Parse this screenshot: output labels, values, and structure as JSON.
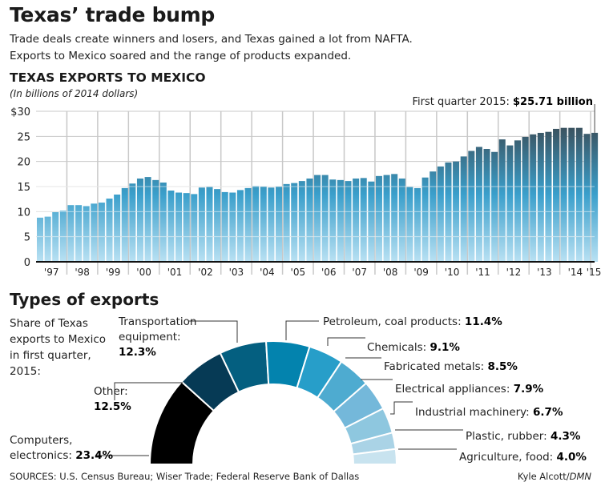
{
  "header": {
    "title": "Texas’ trade bump",
    "dek_line1": "Trade deals create winners and losers, and Texas gained a lot from NAFTA.",
    "dek_line2": "Exports to Mexico soared and the range of products expanded."
  },
  "bar_chart_header": {
    "title": "TEXAS EXPORTS TO MEXICO",
    "subtitle": "(In billions of 2014 dollars)",
    "callout_prefix": "First quarter 2015: ",
    "callout_value": "$25.71 billion"
  },
  "types_section": {
    "title": "Types of exports",
    "intro": "Share of Texas exports to Mexico in first quarter, 2015:"
  },
  "footer": {
    "sources": "SOURCES: U.S. Census Bureau; Wiser Trade; Federal Reserve Bank of Dallas",
    "credit_name": "Kyle Alcott/",
    "credit_org": "DMN"
  },
  "colors": {
    "bar_top": "#3a3f45",
    "bar_mid": "#3a9fcb",
    "bar_bottom": "#b9e1f3",
    "grid": "#c8c8c8",
    "axis": "#111111"
  },
  "chart_data": [
    {
      "type": "bar",
      "title": "TEXAS EXPORTS TO MEXICO",
      "subtitle": "(In billions of 2014 dollars)",
      "xlabel": "",
      "ylabel": "",
      "ylim": [
        0,
        30
      ],
      "y_ticks": [
        0,
        5,
        10,
        15,
        20,
        25,
        30
      ],
      "y_tick_labels": [
        "0",
        "5",
        "10",
        "15",
        "20",
        "25",
        "$30"
      ],
      "x_tick_labels": [
        "'97",
        "'98",
        "'99",
        "'00",
        "'01",
        "'02",
        "'03",
        "'04",
        "'05",
        "'06",
        "'07",
        "'08",
        "'09",
        "'10",
        "'11",
        "'12",
        "'13",
        "'14",
        "'15"
      ],
      "grid": true,
      "frequency": "quarterly",
      "start": "1997 Q1",
      "end": "2015 Q1",
      "values": [
        8.8,
        9.0,
        9.9,
        10.2,
        11.3,
        11.3,
        11.1,
        11.6,
        11.8,
        12.6,
        13.4,
        14.7,
        15.6,
        16.6,
        16.9,
        16.3,
        15.8,
        14.2,
        13.8,
        13.7,
        13.5,
        14.8,
        14.9,
        14.5,
        13.9,
        13.8,
        14.3,
        14.7,
        15.1,
        15.0,
        14.8,
        15.0,
        15.5,
        15.7,
        16.1,
        16.6,
        17.3,
        17.3,
        16.4,
        16.3,
        16.1,
        16.6,
        16.7,
        16.0,
        17.1,
        17.3,
        17.5,
        16.6,
        14.9,
        14.7,
        16.8,
        18.0,
        19.0,
        19.8,
        20.0,
        21.0,
        22.1,
        22.9,
        22.5,
        21.9,
        24.4,
        23.2,
        24.2,
        24.9,
        25.4,
        25.7,
        25.9,
        26.5,
        26.7,
        26.7,
        26.7,
        25.5,
        25.71
      ],
      "annotation": "First quarter 2015: $25.71 billion"
    },
    {
      "type": "pie",
      "variant": "semicircle-donut",
      "title": "Types of exports",
      "subtitle": "Share of Texas exports to Mexico in first quarter, 2015:",
      "unit": "%",
      "slices": [
        {
          "label": "Computers, electronics",
          "value": 23.4,
          "color": "#000000"
        },
        {
          "label": "Other",
          "value": 12.5,
          "color": "#063a55"
        },
        {
          "label": "Transportation equipment",
          "value": 12.3,
          "color": "#045f80"
        },
        {
          "label": "Petroleum, coal products",
          "value": 11.4,
          "color": "#0383ae"
        },
        {
          "label": "Chemicals",
          "value": 9.1,
          "color": "#279ec9"
        },
        {
          "label": "Fabricated metals",
          "value": 8.5,
          "color": "#4eabd0"
        },
        {
          "label": "Electrical appliances",
          "value": 7.9,
          "color": "#74b8da"
        },
        {
          "label": "Industrial machinery",
          "value": 6.7,
          "color": "#8ec7df"
        },
        {
          "label": "Plastic, rubber",
          "value": 4.3,
          "color": "#aad3e6"
        },
        {
          "label": "Agriculture, food",
          "value": 4.0,
          "color": "#c8e3ef"
        }
      ]
    }
  ]
}
